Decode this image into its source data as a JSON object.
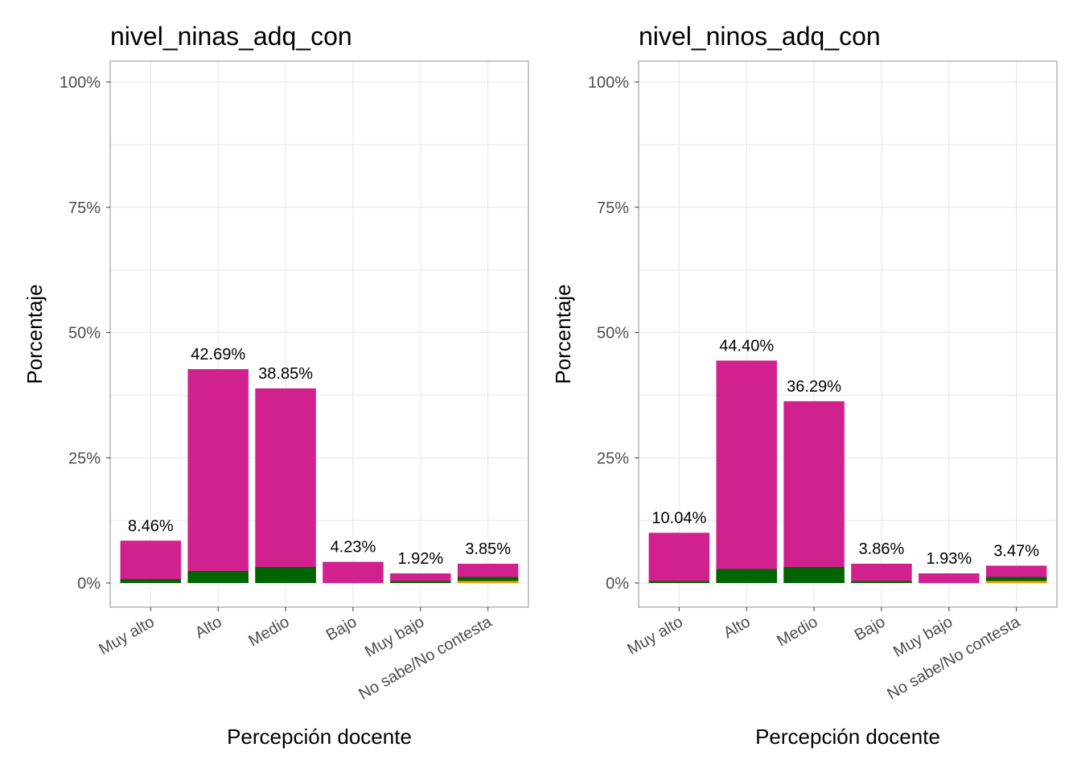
{
  "chart_data": [
    {
      "type": "bar",
      "stacked": true,
      "title": "nivel_ninas_adq_con",
      "xlabel": "Percepción docente",
      "ylabel": "Porcentaje",
      "ylim": [
        0,
        100
      ],
      "yticks": [
        "0%",
        "25%",
        "50%",
        "75%",
        "100%"
      ],
      "grid": true,
      "categories": [
        "Muy alto",
        "Alto",
        "Medio",
        "Bajo",
        "Muy bajo",
        "No sabe/No contesta"
      ],
      "series": [
        {
          "color": "#f4a300",
          "values": [
            0,
            0,
            0,
            0,
            0,
            0.4
          ]
        },
        {
          "color": "#006400",
          "values": [
            0.8,
            2.4,
            3.2,
            0,
            0.4,
            0.8
          ]
        },
        {
          "color": "#d0218f",
          "values": [
            7.66,
            40.29,
            35.65,
            4.23,
            1.52,
            2.65
          ]
        }
      ],
      "totals": [
        8.46,
        42.69,
        38.85,
        4.23,
        1.92,
        3.85
      ],
      "data_labels": [
        "8.46%",
        "42.69%",
        "38.85%",
        "4.23%",
        "1.92%",
        "3.85%"
      ]
    },
    {
      "type": "bar",
      "stacked": true,
      "title": "nivel_ninos_adq_con",
      "xlabel": "Percepción docente",
      "ylabel": "Porcentaje",
      "ylim": [
        0,
        100
      ],
      "yticks": [
        "0%",
        "25%",
        "50%",
        "75%",
        "100%"
      ],
      "grid": true,
      "categories": [
        "Muy alto",
        "Alto",
        "Medio",
        "Bajo",
        "Muy bajo",
        "No sabe/No contesta"
      ],
      "series": [
        {
          "color": "#f4a300",
          "values": [
            0,
            0,
            0,
            0,
            0,
            0.4
          ]
        },
        {
          "color": "#006400",
          "values": [
            0.4,
            2.8,
            3.2,
            0.4,
            0,
            0.8
          ]
        },
        {
          "color": "#d0218f",
          "values": [
            9.64,
            41.6,
            33.09,
            3.46,
            1.93,
            2.27
          ]
        }
      ],
      "totals": [
        10.04,
        44.4,
        36.29,
        3.86,
        1.93,
        3.47
      ],
      "data_labels": [
        "10.04%",
        "44.40%",
        "36.29%",
        "3.86%",
        "1.93%",
        "3.47%"
      ]
    }
  ]
}
